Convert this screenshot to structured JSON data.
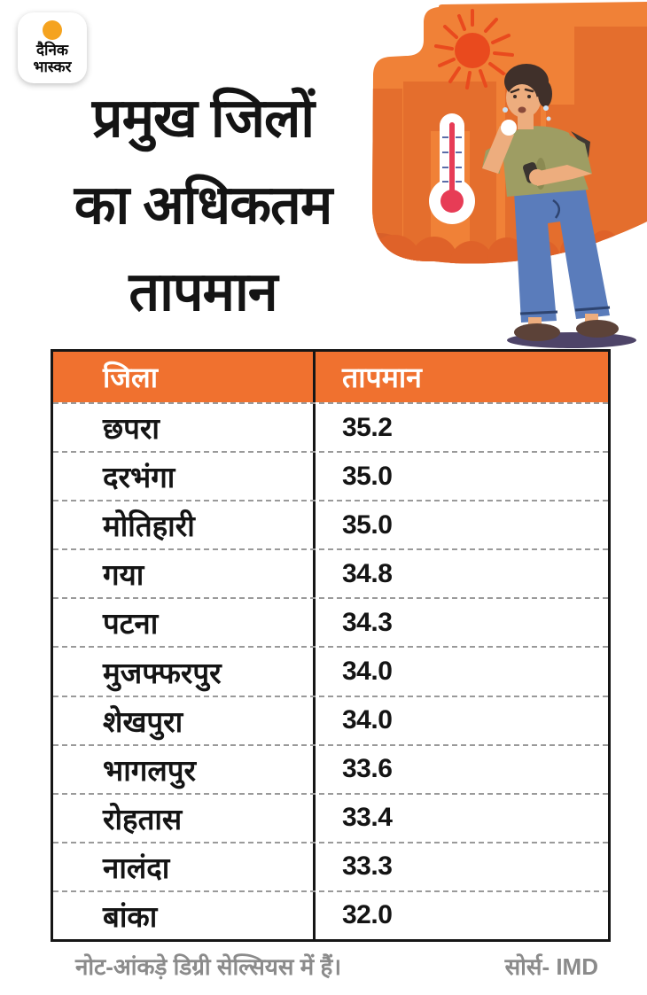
{
  "brand": {
    "name": "दैनिक भास्कर",
    "logo_line1": "दैनिक",
    "logo_line2": "भास्कर"
  },
  "title": {
    "line1": "प्रमुख जिलों",
    "line2": "का अधिकतम",
    "line3": "तापमान"
  },
  "illustration": {
    "icons": [
      "sun-icon",
      "thermometer-icon",
      "city-buildings",
      "sweating-man"
    ],
    "description": "Man sweating in heat under sun with thermometer against orange city backdrop"
  },
  "table": {
    "columns": [
      "जिला",
      "तापमान"
    ],
    "rows": [
      {
        "district": "छपरा",
        "temperature": "35.2"
      },
      {
        "district": "दरभंगा",
        "temperature": "35.0"
      },
      {
        "district": "मोतिहारी",
        "temperature": "35.0"
      },
      {
        "district": "गया",
        "temperature": "34.8"
      },
      {
        "district": "पटना",
        "temperature": "34.3"
      },
      {
        "district": "मुजफ्फरपुर",
        "temperature": "34.0"
      },
      {
        "district": "शेखपुरा",
        "temperature": "34.0"
      },
      {
        "district": "भागलपुर",
        "temperature": "33.6"
      },
      {
        "district": "रोहतास",
        "temperature": "33.4"
      },
      {
        "district": "नालंदा",
        "temperature": "33.3"
      },
      {
        "district": "बांका",
        "temperature": "32.0"
      }
    ]
  },
  "footer": {
    "note": "नोट-आंकड़े डिग्री सेल्सियस में हैं।",
    "source": "सोर्स- IMD"
  },
  "colors": {
    "header_orange": "#F0712F",
    "blob_orange": "#F08137",
    "building_orange": "#E46E2D",
    "building_dark": "#D8602A",
    "sun_red": "#E94A1E",
    "mercury_red": "#E73C56",
    "tick_blue": "#5A6CA8",
    "shadow_purple": "#4E4468",
    "jeans_blue": "#5A7CBB",
    "jeans_dark": "#2E4470",
    "shirt_olive": "#9E9D63",
    "skin": "#EDAD7E",
    "hair_brown": "#40302A",
    "shoe_brown": "#5C4238",
    "logo_orange": "#F5A31F",
    "text_black": "#141414",
    "muted_gray": "#8B8B8B",
    "dash_gray": "#9A9A9A"
  },
  "chart_data": {
    "type": "table",
    "title": "प्रमुख जिलों का अधिकतम तापमान",
    "columns": [
      "जिला",
      "तापमान"
    ],
    "categories": [
      "छपरा",
      "दरभंगा",
      "मोतिहारी",
      "गया",
      "पटना",
      "मुजफ्फरपुर",
      "शेखपुरा",
      "भागलपुर",
      "रोहतास",
      "नालंदा",
      "बांका"
    ],
    "values": [
      35.2,
      35.0,
      35.0,
      34.8,
      34.3,
      34.0,
      34.0,
      33.6,
      33.4,
      33.3,
      32.0
    ],
    "unit": "डिग्री सेल्सियस",
    "source": "IMD"
  }
}
